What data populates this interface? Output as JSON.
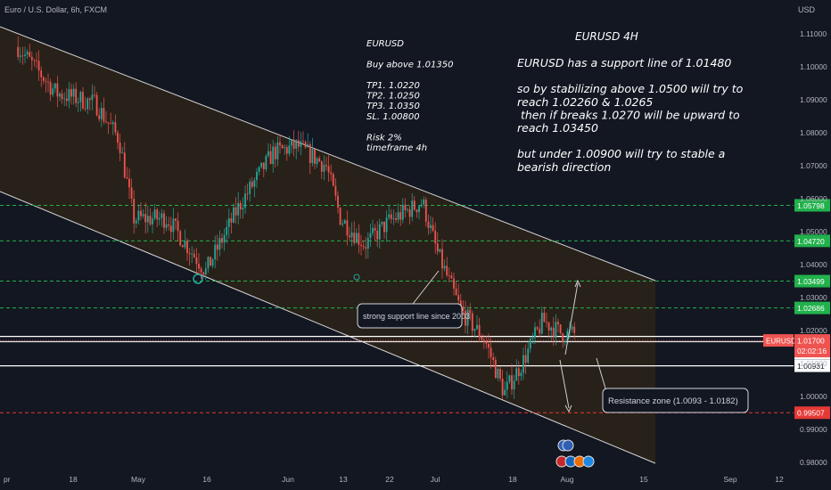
{
  "header": {
    "symbol_line": "Euro / U.S. Dollar, 6h, FXCM",
    "currency": "USD"
  },
  "colors": {
    "background": "#131722",
    "up": "#26a69a",
    "down": "#ef5350",
    "channel_line": "#d9d9d9",
    "channel_fill": "#3a2a12",
    "level_green": "#22b14c",
    "level_red": "#e53935",
    "axis_text": "#b2b5be"
  },
  "left_note": [
    "EURUSD",
    "",
    "Buy above 1.01350",
    "",
    "TP1. 1.0220",
    "TP2. 1.0250",
    "TP3. 1.0350",
    "SL. 1.00800",
    "",
    "Risk 2%",
    "timeframe 4h"
  ],
  "right_note": {
    "title": "EURUSD 4H",
    "lines": [
      "EURUSD has a support line of 1.01480",
      "",
      "so by stabilizing above 1.0500 will try to",
      "reach 1.02260 & 1.0265",
      "  then if breaks 1.0270  will be upward to",
      "reach 1.03450",
      "",
      "but under 1.00900 will try to stable a",
      "bearish direction"
    ]
  },
  "callouts": {
    "support": "strong support line since 2003",
    "resistance": "Resistance zone (1.0093  -  1.0182)"
  },
  "price_tags": {
    "symbol": "EURUSD",
    "last_price": "1.01700",
    "countdown": "02:02:16"
  },
  "chart_data": {
    "type": "candlestick",
    "symbol": "EURUSD",
    "timeframe": "6h",
    "ylim": [
      0.976,
      1.1135
    ],
    "y_ticks": [
      "1.11000",
      "1.10000",
      "1.09000",
      "1.08000",
      "1.07000",
      "1.06000",
      "1.05000",
      "1.04000",
      "1.03000",
      "1.02000",
      "1.01000",
      "1.00000",
      "0.99000",
      "0.98000"
    ],
    "x_ticks": [
      "pr",
      "18",
      "May",
      "16",
      "Jun",
      "13",
      "22",
      "Jul",
      "18",
      "Aug",
      "15",
      "Sep",
      "12"
    ],
    "levels": [
      {
        "price": "1.05798",
        "color": "green",
        "style": "dashed"
      },
      {
        "price": "1.04720",
        "color": "green",
        "style": "dashed"
      },
      {
        "price": "1.03499",
        "color": "green",
        "style": "dashed"
      },
      {
        "price": "1.02686",
        "color": "green",
        "style": "dashed"
      },
      {
        "price": "1.01663",
        "color": "green",
        "style": "solid"
      },
      {
        "price": "1.01316",
        "color": "white",
        "style": "solid"
      },
      {
        "price": "1.00931",
        "color": "white",
        "style": "solid"
      },
      {
        "price": "0.99507",
        "color": "red",
        "style": "dashed"
      }
    ],
    "price_path": [
      [
        "2022-04-04",
        1.106
      ],
      [
        "2022-04-12",
        1.092
      ],
      [
        "2022-04-20",
        1.089
      ],
      [
        "2022-04-25",
        1.078
      ],
      [
        "2022-04-28",
        1.054
      ],
      [
        "2022-05-05",
        1.054
      ],
      [
        "2022-05-13",
        1.038
      ],
      [
        "2022-05-20",
        1.058
      ],
      [
        "2022-05-27",
        1.074
      ],
      [
        "2022-06-01",
        1.076
      ],
      [
        "2022-06-07",
        1.07
      ],
      [
        "2022-06-10",
        1.054
      ],
      [
        "2022-06-15",
        1.046
      ],
      [
        "2022-06-20",
        1.053
      ],
      [
        "2022-06-27",
        1.059
      ],
      [
        "2022-06-30",
        1.044
      ],
      [
        "2022-07-05",
        1.026
      ],
      [
        "2022-07-10",
        1.017
      ],
      [
        "2022-07-14",
        1.001
      ],
      [
        "2022-07-18",
        1.011
      ],
      [
        "2022-07-22",
        1.023
      ],
      [
        "2022-07-26",
        1.019
      ],
      [
        "2022-07-29",
        1.019
      ]
    ]
  }
}
